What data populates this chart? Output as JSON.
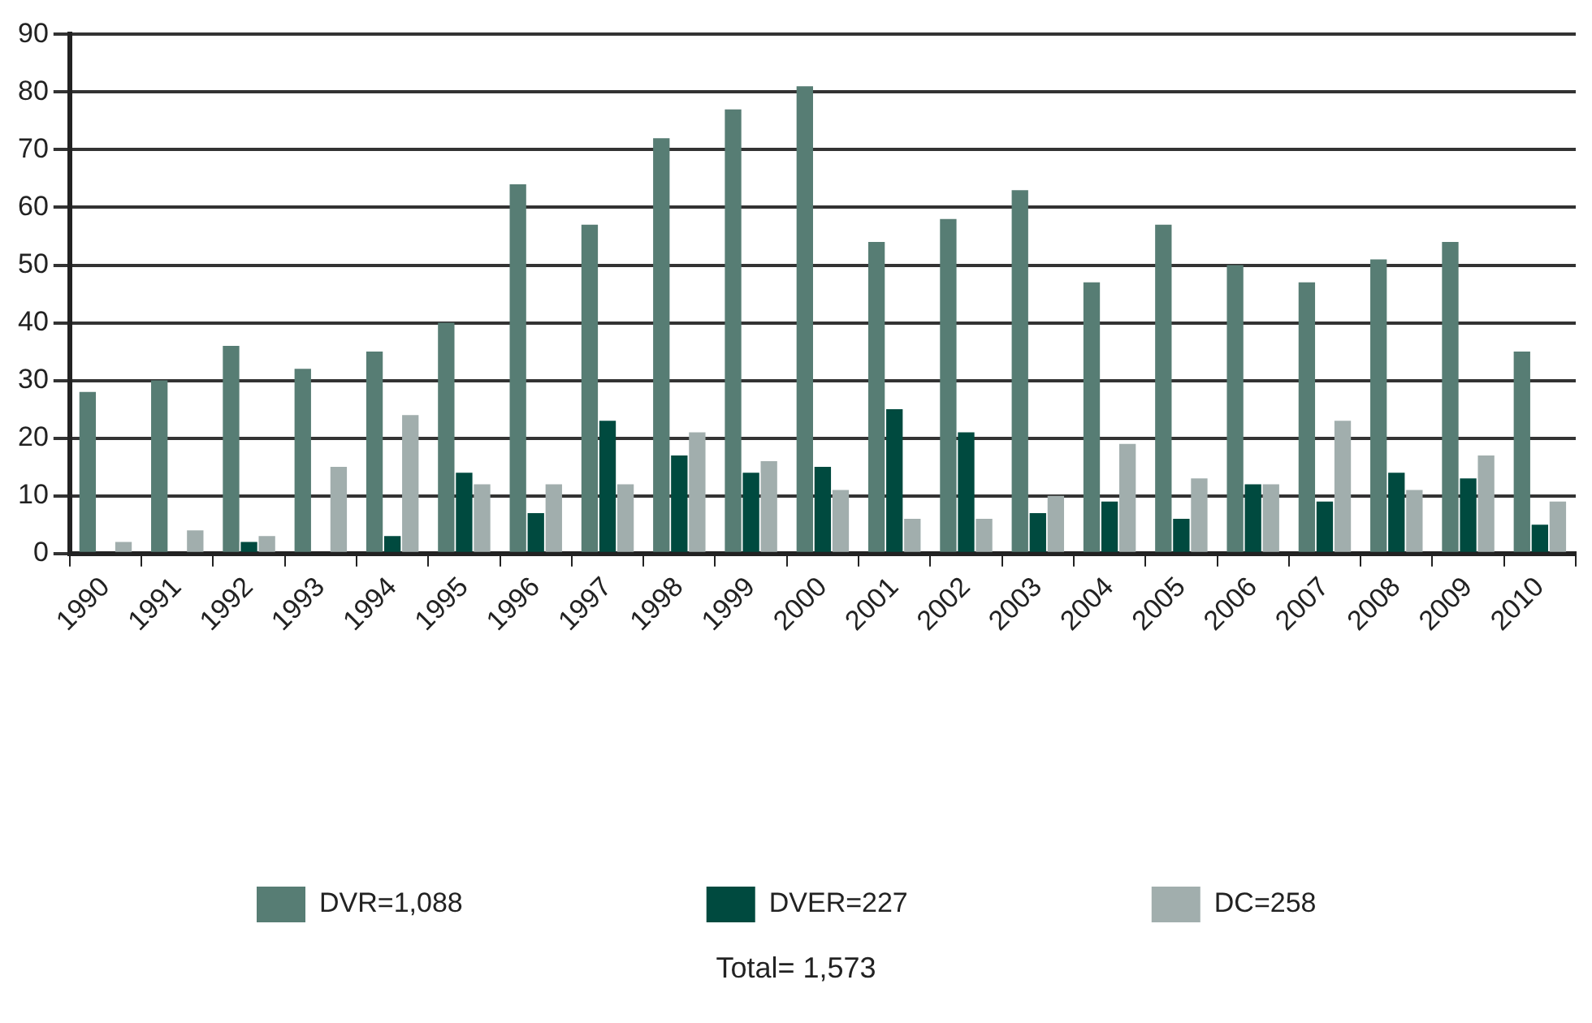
{
  "chart_data": {
    "type": "bar",
    "categories": [
      "1990",
      "1991",
      "1992",
      "1993",
      "1994",
      "1995",
      "1996",
      "1997",
      "1998",
      "1999",
      "2000",
      "2001",
      "2002",
      "2003",
      "2004",
      "2005",
      "2006",
      "2007",
      "2008",
      "2009",
      "2010"
    ],
    "series": [
      {
        "name": "DVR=1,088",
        "color": "#577d74",
        "values": [
          28,
          30,
          36,
          32,
          35,
          40,
          64,
          57,
          72,
          77,
          81,
          54,
          58,
          63,
          47,
          57,
          50,
          47,
          51,
          54,
          35
        ]
      },
      {
        "name": "DVER=227",
        "color": "#004a3f",
        "values": [
          0,
          0,
          2,
          0,
          3,
          14,
          7,
          23,
          17,
          14,
          15,
          25,
          21,
          7,
          9,
          6,
          12,
          9,
          14,
          13,
          5
        ]
      },
      {
        "name": "DC=258",
        "color": "#a1aead",
        "values": [
          2,
          4,
          3,
          15,
          24,
          12,
          12,
          12,
          21,
          16,
          11,
          6,
          6,
          10,
          19,
          13,
          12,
          23,
          11,
          17,
          9
        ]
      }
    ],
    "ylim": [
      0,
      90
    ],
    "yticks": [
      0,
      10,
      20,
      30,
      40,
      50,
      60,
      70,
      80,
      90
    ],
    "grid": "y",
    "legend": "bottom",
    "annotations": [
      "Total= 1,573"
    ]
  }
}
